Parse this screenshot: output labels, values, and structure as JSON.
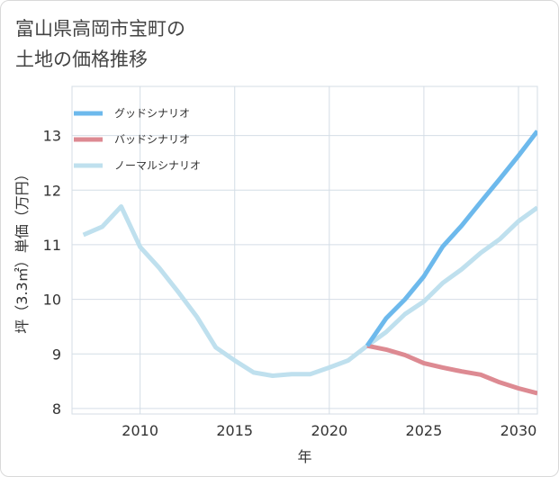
{
  "title_line1": "富山県高岡市宝町の",
  "title_line2": "土地の価格推移",
  "chart_data": {
    "type": "line",
    "title": "富山県高岡市宝町の土地の価格推移",
    "xlabel": "年",
    "ylabel": "坪（3.3㎡）単価（万円）",
    "xlim": [
      2006.4,
      2031
    ],
    "ylim": [
      7.9,
      13.9
    ],
    "xticks": [
      2010,
      2015,
      2020,
      2025,
      2030
    ],
    "yticks": [
      8,
      9,
      10,
      11,
      12,
      13
    ],
    "legend_position": "top-left",
    "grid": true,
    "series": [
      {
        "name": "グッドシナリオ",
        "color": "#6db9ec",
        "x": [
          2022,
          2023,
          2024,
          2025,
          2026,
          2027,
          2028,
          2029,
          2030,
          2031
        ],
        "values": [
          9.15,
          9.65,
          10.0,
          10.42,
          10.97,
          11.35,
          11.78,
          12.2,
          12.63,
          13.08
        ]
      },
      {
        "name": "バッドシナリオ",
        "color": "#dd8a92",
        "x": [
          2022,
          2023,
          2024,
          2025,
          2026,
          2027,
          2028,
          2029,
          2030,
          2031
        ],
        "values": [
          9.15,
          9.08,
          8.98,
          8.83,
          8.75,
          8.68,
          8.62,
          8.48,
          8.37,
          8.28
        ]
      },
      {
        "name": "ノーマルシナリオ",
        "color": "#bfe0ee",
        "x": [
          2007,
          2008,
          2009,
          2010,
          2011,
          2012,
          2013,
          2014,
          2015,
          2016,
          2017,
          2018,
          2019,
          2020,
          2021,
          2022,
          2023,
          2024,
          2025,
          2026,
          2027,
          2028,
          2029,
          2030,
          2031
        ],
        "values": [
          11.18,
          11.33,
          11.7,
          10.96,
          10.58,
          10.14,
          9.68,
          9.12,
          8.88,
          8.66,
          8.6,
          8.63,
          8.63,
          8.75,
          8.88,
          9.15,
          9.4,
          9.73,
          9.96,
          10.3,
          10.55,
          10.85,
          11.1,
          11.43,
          11.68
        ]
      }
    ]
  }
}
